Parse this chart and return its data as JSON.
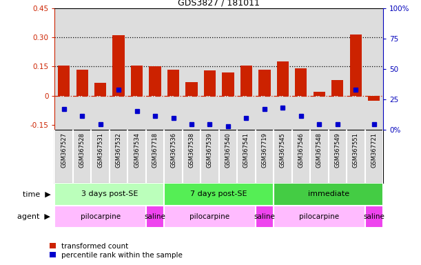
{
  "title": "GDS3827 / 181011",
  "samples": [
    "GSM367527",
    "GSM367528",
    "GSM367531",
    "GSM367532",
    "GSM367534",
    "GSM367718",
    "GSM367536",
    "GSM367538",
    "GSM367539",
    "GSM367540",
    "GSM367541",
    "GSM367719",
    "GSM367545",
    "GSM367546",
    "GSM367548",
    "GSM367549",
    "GSM367551",
    "GSM367721"
  ],
  "transformed_count": [
    0.155,
    0.135,
    0.065,
    0.31,
    0.155,
    0.15,
    0.135,
    0.07,
    0.13,
    0.12,
    0.155,
    0.135,
    0.175,
    0.14,
    0.02,
    0.08,
    0.315,
    -0.025
  ],
  "percentile_rank": [
    -0.07,
    -0.105,
    -0.145,
    0.03,
    -0.08,
    -0.105,
    -0.115,
    -0.145,
    -0.145,
    -0.155,
    -0.115,
    -0.07,
    -0.06,
    -0.105,
    -0.145,
    -0.145,
    0.03,
    -0.145
  ],
  "bar_color": "#cc2200",
  "dot_color": "#0000cc",
  "ylim_left": [
    -0.175,
    0.45
  ],
  "ylim_right": [
    0,
    100
  ],
  "yticks_left": [
    -0.15,
    0.0,
    0.15,
    0.3,
    0.45
  ],
  "yticks_right": [
    0,
    25,
    50,
    75,
    100
  ],
  "ytick_labels_left": [
    "-0.15",
    "0",
    "0.15",
    "0.30",
    "0.45"
  ],
  "ytick_labels_right": [
    "0%",
    "25",
    "50",
    "75",
    "100%"
  ],
  "hlines": [
    0.15,
    0.3
  ],
  "zero_line_color": "#cc2200",
  "time_groups": [
    {
      "label": "3 days post-SE",
      "start": 0,
      "end": 5,
      "color": "#bbffbb"
    },
    {
      "label": "7 days post-SE",
      "start": 6,
      "end": 11,
      "color": "#55ee55"
    },
    {
      "label": "immediate",
      "start": 12,
      "end": 17,
      "color": "#44cc44"
    }
  ],
  "agent_groups": [
    {
      "label": "pilocarpine",
      "start": 0,
      "end": 4,
      "color": "#ffbbff"
    },
    {
      "label": "saline",
      "start": 5,
      "end": 5,
      "color": "#ee44ee"
    },
    {
      "label": "pilocarpine",
      "start": 6,
      "end": 10,
      "color": "#ffbbff"
    },
    {
      "label": "saline",
      "start": 11,
      "end": 11,
      "color": "#ee44ee"
    },
    {
      "label": "pilocarpine",
      "start": 12,
      "end": 16,
      "color": "#ffbbff"
    },
    {
      "label": "saline",
      "start": 17,
      "end": 17,
      "color": "#ee44ee"
    }
  ],
  "legend_items": [
    {
      "label": "transformed count",
      "color": "#cc2200"
    },
    {
      "label": "percentile rank within the sample",
      "color": "#0000cc"
    }
  ],
  "bg_color": "#ffffff",
  "sample_area_bg": "#dddddd",
  "left_axis_color": "#cc2200",
  "right_axis_color": "#0000bb"
}
